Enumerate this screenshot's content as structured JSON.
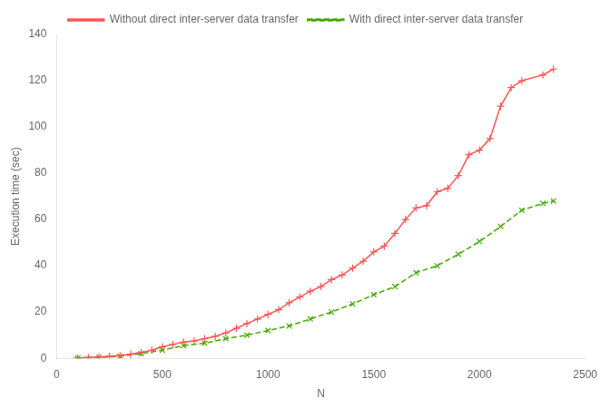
{
  "chart_data": {
    "type": "line",
    "xlabel": "N",
    "ylabel": "Execution time (sec)",
    "xlim": [
      0,
      2500
    ],
    "ylim": [
      0,
      140
    ],
    "xticks": [
      0,
      500,
      1000,
      1500,
      2000,
      2500
    ],
    "yticks": [
      0,
      20,
      40,
      60,
      80,
      100,
      120,
      140
    ],
    "grid": false,
    "legend": "top",
    "series": [
      {
        "name": "Without direct inter-server data transfer",
        "color": "#ff5555",
        "marker": "plus",
        "line_style": "solid",
        "x": [
          100,
          150,
          200,
          250,
          300,
          350,
          400,
          450,
          500,
          550,
          600,
          650,
          700,
          750,
          800,
          850,
          900,
          950,
          1000,
          1050,
          1100,
          1150,
          1200,
          1250,
          1300,
          1350,
          1400,
          1450,
          1500,
          1550,
          1600,
          1650,
          1700,
          1750,
          1800,
          1850,
          1900,
          1950,
          2000,
          2050,
          2100,
          2150,
          2200,
          2300,
          2350
        ],
        "values": [
          0.2,
          0.4,
          0.6,
          0.9,
          1.2,
          1.8,
          2.5,
          3.5,
          5.0,
          6.0,
          7.0,
          7.5,
          8.5,
          9.5,
          11.0,
          13.0,
          15.0,
          17.0,
          19.0,
          21.0,
          24.0,
          26.5,
          29.0,
          31.0,
          34.0,
          36.0,
          39.0,
          42.0,
          46.0,
          48.5,
          54.0,
          60.0,
          65.0,
          66.0,
          72.0,
          73.5,
          79.0,
          88.0,
          90.0,
          95.0,
          109.0,
          117.0,
          120.0,
          122.5,
          125.0
        ]
      },
      {
        "name": "With direct inter-server data transfer",
        "color": "#44aa00",
        "marker": "x",
        "line_style": "dashed",
        "x": [
          100,
          200,
          300,
          400,
          500,
          600,
          700,
          800,
          900,
          1000,
          1100,
          1200,
          1300,
          1400,
          1500,
          1600,
          1700,
          1800,
          1900,
          2000,
          2100,
          2200,
          2300,
          2350
        ],
        "values": [
          0.1,
          0.4,
          0.9,
          2.0,
          3.5,
          5.5,
          6.5,
          8.5,
          10.0,
          12.0,
          14.0,
          17.0,
          20.0,
          23.5,
          27.5,
          31.0,
          37.0,
          40.0,
          45.0,
          50.5,
          57.0,
          64.0,
          67.0,
          68.0
        ]
      }
    ]
  }
}
